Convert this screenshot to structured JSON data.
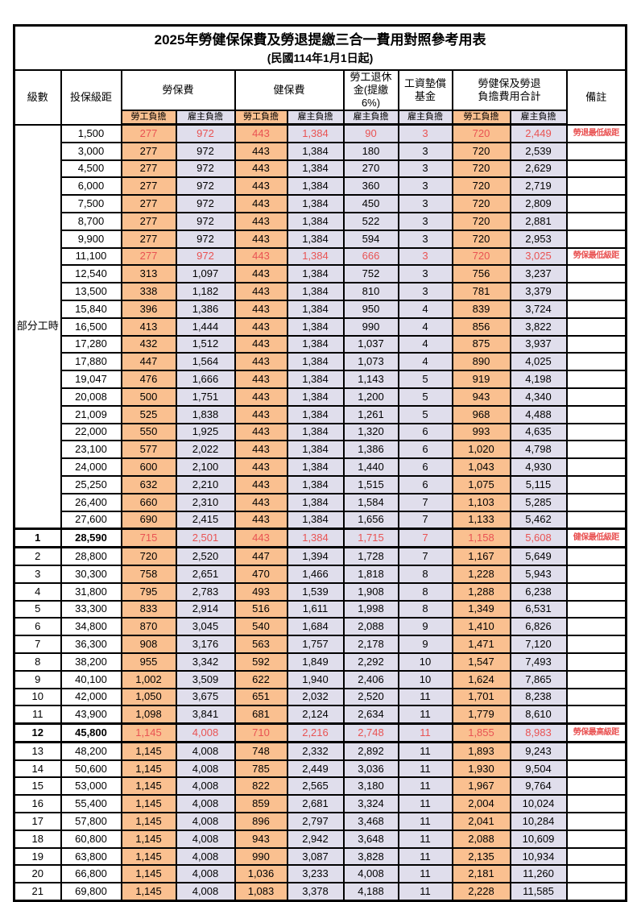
{
  "title": {
    "line1": "2025年勞健保保費及勞退提繳三合一費用對照參考用表",
    "line2": "(民國114年1月1日起)"
  },
  "colors": {
    "employee_share_bg": "#FAC090",
    "employer_share_bg": "#E0DEEC",
    "highlight_text": "#E95353",
    "border": "#000000"
  },
  "header": {
    "level": "級數",
    "bracket": "投保級距",
    "labor_group": "勞保費",
    "health_group": "健保費",
    "pension_group": "勞工退休\n金(提繳6%)",
    "wage_group": "工資墊償\n基金",
    "total_group": "勞健保及勞退\n負擔費用合計",
    "note": "備註",
    "subs": [
      "勞工負擔",
      "雇主負擔",
      "勞工負擔",
      "雇主負擔",
      "雇主負擔",
      "雇主負擔",
      "勞工負擔",
      "雇主負擔"
    ]
  },
  "table": {
    "part_time_label": "部分工時",
    "part_time_rowspan": 23,
    "rows": [
      {
        "level": "",
        "bracket": "1,500",
        "values": [
          "277",
          "972",
          "443",
          "1,384",
          "90",
          "3",
          "720",
          "2,449"
        ],
        "note": "勞退最低級距",
        "red": true,
        "thick": false
      },
      {
        "level": "",
        "bracket": "3,000",
        "values": [
          "277",
          "972",
          "443",
          "1,384",
          "180",
          "3",
          "720",
          "2,539"
        ],
        "note": "",
        "red": false,
        "thick": false
      },
      {
        "level": "",
        "bracket": "4,500",
        "values": [
          "277",
          "972",
          "443",
          "1,384",
          "270",
          "3",
          "720",
          "2,629"
        ],
        "note": "",
        "red": false,
        "thick": false
      },
      {
        "level": "",
        "bracket": "6,000",
        "values": [
          "277",
          "972",
          "443",
          "1,384",
          "360",
          "3",
          "720",
          "2,719"
        ],
        "note": "",
        "red": false,
        "thick": false
      },
      {
        "level": "",
        "bracket": "7,500",
        "values": [
          "277",
          "972",
          "443",
          "1,384",
          "450",
          "3",
          "720",
          "2,809"
        ],
        "note": "",
        "red": false,
        "thick": false
      },
      {
        "level": "",
        "bracket": "8,700",
        "values": [
          "277",
          "972",
          "443",
          "1,384",
          "522",
          "3",
          "720",
          "2,881"
        ],
        "note": "",
        "red": false,
        "thick": false
      },
      {
        "level": "",
        "bracket": "9,900",
        "values": [
          "277",
          "972",
          "443",
          "1,384",
          "594",
          "3",
          "720",
          "2,953"
        ],
        "note": "",
        "red": false,
        "thick": false
      },
      {
        "level": "",
        "bracket": "11,100",
        "values": [
          "277",
          "972",
          "443",
          "1,384",
          "666",
          "3",
          "720",
          "3,025"
        ],
        "note": "勞保最低級距",
        "red": true,
        "thick": false
      },
      {
        "level": "",
        "bracket": "12,540",
        "values": [
          "313",
          "1,097",
          "443",
          "1,384",
          "752",
          "3",
          "756",
          "3,237"
        ],
        "note": "",
        "red": false,
        "thick": false
      },
      {
        "level": "",
        "bracket": "13,500",
        "values": [
          "338",
          "1,182",
          "443",
          "1,384",
          "810",
          "3",
          "781",
          "3,379"
        ],
        "note": "",
        "red": false,
        "thick": false
      },
      {
        "level": "",
        "bracket": "15,840",
        "values": [
          "396",
          "1,386",
          "443",
          "1,384",
          "950",
          "4",
          "839",
          "3,724"
        ],
        "note": "",
        "red": false,
        "thick": false
      },
      {
        "level": "",
        "bracket": "16,500",
        "values": [
          "413",
          "1,444",
          "443",
          "1,384",
          "990",
          "4",
          "856",
          "3,822"
        ],
        "note": "",
        "red": false,
        "thick": false
      },
      {
        "level": "",
        "bracket": "17,280",
        "values": [
          "432",
          "1,512",
          "443",
          "1,384",
          "1,037",
          "4",
          "875",
          "3,937"
        ],
        "note": "",
        "red": false,
        "thick": false
      },
      {
        "level": "",
        "bracket": "17,880",
        "values": [
          "447",
          "1,564",
          "443",
          "1,384",
          "1,073",
          "4",
          "890",
          "4,025"
        ],
        "note": "",
        "red": false,
        "thick": false
      },
      {
        "level": "",
        "bracket": "19,047",
        "values": [
          "476",
          "1,666",
          "443",
          "1,384",
          "1,143",
          "5",
          "919",
          "4,198"
        ],
        "note": "",
        "red": false,
        "thick": false
      },
      {
        "level": "",
        "bracket": "20,008",
        "values": [
          "500",
          "1,751",
          "443",
          "1,384",
          "1,200",
          "5",
          "943",
          "4,340"
        ],
        "note": "",
        "red": false,
        "thick": false
      },
      {
        "level": "",
        "bracket": "21,009",
        "values": [
          "525",
          "1,838",
          "443",
          "1,384",
          "1,261",
          "5",
          "968",
          "4,488"
        ],
        "note": "",
        "red": false,
        "thick": false
      },
      {
        "level": "",
        "bracket": "22,000",
        "values": [
          "550",
          "1,925",
          "443",
          "1,384",
          "1,320",
          "6",
          "993",
          "4,635"
        ],
        "note": "",
        "red": false,
        "thick": false
      },
      {
        "level": "",
        "bracket": "23,100",
        "values": [
          "577",
          "2,022",
          "443",
          "1,384",
          "1,386",
          "6",
          "1,020",
          "4,798"
        ],
        "note": "",
        "red": false,
        "thick": false
      },
      {
        "level": "",
        "bracket": "24,000",
        "values": [
          "600",
          "2,100",
          "443",
          "1,384",
          "1,440",
          "6",
          "1,043",
          "4,930"
        ],
        "note": "",
        "red": false,
        "thick": false
      },
      {
        "level": "",
        "bracket": "25,250",
        "values": [
          "632",
          "2,210",
          "443",
          "1,384",
          "1,515",
          "6",
          "1,075",
          "5,115"
        ],
        "note": "",
        "red": false,
        "thick": false
      },
      {
        "level": "",
        "bracket": "26,400",
        "values": [
          "660",
          "2,310",
          "443",
          "1,384",
          "1,584",
          "7",
          "1,103",
          "5,285"
        ],
        "note": "",
        "red": false,
        "thick": false
      },
      {
        "level": "",
        "bracket": "27,600",
        "values": [
          "690",
          "2,415",
          "443",
          "1,384",
          "1,656",
          "7",
          "1,133",
          "5,462"
        ],
        "note": "",
        "red": false,
        "thick": false
      },
      {
        "level": "1",
        "bracket": "28,590",
        "values": [
          "715",
          "2,501",
          "443",
          "1,384",
          "1,715",
          "7",
          "1,158",
          "5,608"
        ],
        "note": "健保最低級距",
        "red": true,
        "thick": true
      },
      {
        "level": "2",
        "bracket": "28,800",
        "values": [
          "720",
          "2,520",
          "447",
          "1,394",
          "1,728",
          "7",
          "1,167",
          "5,649"
        ],
        "note": "",
        "red": false,
        "thick": false
      },
      {
        "level": "3",
        "bracket": "30,300",
        "values": [
          "758",
          "2,651",
          "470",
          "1,466",
          "1,818",
          "8",
          "1,228",
          "5,943"
        ],
        "note": "",
        "red": false,
        "thick": false
      },
      {
        "level": "4",
        "bracket": "31,800",
        "values": [
          "795",
          "2,783",
          "493",
          "1,539",
          "1,908",
          "8",
          "1,288",
          "6,238"
        ],
        "note": "",
        "red": false,
        "thick": false
      },
      {
        "level": "5",
        "bracket": "33,300",
        "values": [
          "833",
          "2,914",
          "516",
          "1,611",
          "1,998",
          "8",
          "1,349",
          "6,531"
        ],
        "note": "",
        "red": false,
        "thick": false
      },
      {
        "level": "6",
        "bracket": "34,800",
        "values": [
          "870",
          "3,045",
          "540",
          "1,684",
          "2,088",
          "9",
          "1,410",
          "6,826"
        ],
        "note": "",
        "red": false,
        "thick": false
      },
      {
        "level": "7",
        "bracket": "36,300",
        "values": [
          "908",
          "3,176",
          "563",
          "1,757",
          "2,178",
          "9",
          "1,471",
          "7,120"
        ],
        "note": "",
        "red": false,
        "thick": false
      },
      {
        "level": "8",
        "bracket": "38,200",
        "values": [
          "955",
          "3,342",
          "592",
          "1,849",
          "2,292",
          "10",
          "1,547",
          "7,493"
        ],
        "note": "",
        "red": false,
        "thick": false
      },
      {
        "level": "9",
        "bracket": "40,100",
        "values": [
          "1,002",
          "3,509",
          "622",
          "1,940",
          "2,406",
          "10",
          "1,624",
          "7,865"
        ],
        "note": "",
        "red": false,
        "thick": false
      },
      {
        "level": "10",
        "bracket": "42,000",
        "values": [
          "1,050",
          "3,675",
          "651",
          "2,032",
          "2,520",
          "11",
          "1,701",
          "8,238"
        ],
        "note": "",
        "red": false,
        "thick": false
      },
      {
        "level": "11",
        "bracket": "43,900",
        "values": [
          "1,098",
          "3,841",
          "681",
          "2,124",
          "2,634",
          "11",
          "1,779",
          "8,610"
        ],
        "note": "",
        "red": false,
        "thick": false
      },
      {
        "level": "12",
        "bracket": "45,800",
        "values": [
          "1,145",
          "4,008",
          "710",
          "2,216",
          "2,748",
          "11",
          "1,855",
          "8,983"
        ],
        "note": "勞保最高級距",
        "red": true,
        "thick": true
      },
      {
        "level": "13",
        "bracket": "48,200",
        "values": [
          "1,145",
          "4,008",
          "748",
          "2,332",
          "2,892",
          "11",
          "1,893",
          "9,243"
        ],
        "note": "",
        "red": false,
        "thick": false
      },
      {
        "level": "14",
        "bracket": "50,600",
        "values": [
          "1,145",
          "4,008",
          "785",
          "2,449",
          "3,036",
          "11",
          "1,930",
          "9,504"
        ],
        "note": "",
        "red": false,
        "thick": false
      },
      {
        "level": "15",
        "bracket": "53,000",
        "values": [
          "1,145",
          "4,008",
          "822",
          "2,565",
          "3,180",
          "11",
          "1,967",
          "9,764"
        ],
        "note": "",
        "red": false,
        "thick": false
      },
      {
        "level": "16",
        "bracket": "55,400",
        "values": [
          "1,145",
          "4,008",
          "859",
          "2,681",
          "3,324",
          "11",
          "2,004",
          "10,024"
        ],
        "note": "",
        "red": false,
        "thick": false
      },
      {
        "level": "17",
        "bracket": "57,800",
        "values": [
          "1,145",
          "4,008",
          "896",
          "2,797",
          "3,468",
          "11",
          "2,041",
          "10,284"
        ],
        "note": "",
        "red": false,
        "thick": false
      },
      {
        "level": "18",
        "bracket": "60,800",
        "values": [
          "1,145",
          "4,008",
          "943",
          "2,942",
          "3,648",
          "11",
          "2,088",
          "10,609"
        ],
        "note": "",
        "red": false,
        "thick": false
      },
      {
        "level": "19",
        "bracket": "63,800",
        "values": [
          "1,145",
          "4,008",
          "990",
          "3,087",
          "3,828",
          "11",
          "2,135",
          "10,934"
        ],
        "note": "",
        "red": false,
        "thick": false
      },
      {
        "level": "20",
        "bracket": "66,800",
        "values": [
          "1,145",
          "4,008",
          "1,036",
          "3,233",
          "4,008",
          "11",
          "2,181",
          "11,260"
        ],
        "note": "",
        "red": false,
        "thick": false
      },
      {
        "level": "21",
        "bracket": "69,800",
        "values": [
          "1,145",
          "4,008",
          "1,083",
          "3,378",
          "4,188",
          "11",
          "2,228",
          "11,585"
        ],
        "note": "",
        "red": false,
        "thick": false
      }
    ]
  }
}
